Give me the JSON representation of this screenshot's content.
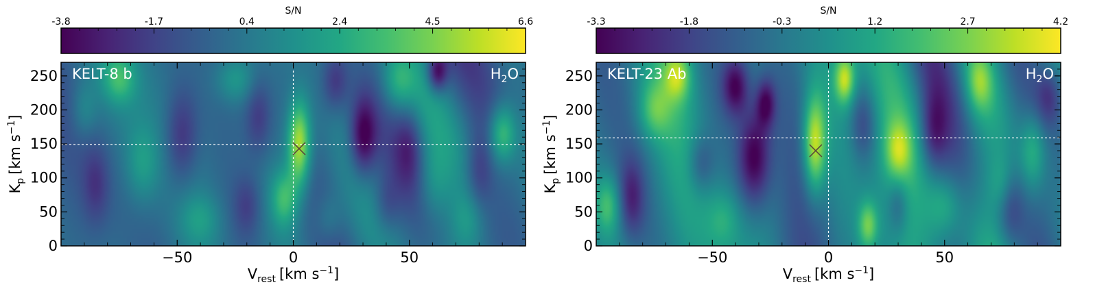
{
  "chart_data": [
    {
      "type": "heatmap",
      "planet_label": "KELT-8 b",
      "species": {
        "base": "H",
        "sub": "2",
        "tail": "O"
      },
      "colorbar": {
        "title": "S/N",
        "vmin": -3.8,
        "vmax": 6.6,
        "ticks": [
          "-3.8",
          "-1.7",
          "0.4",
          "2.4",
          "4.5",
          "6.6"
        ]
      },
      "x": {
        "label_main": "V",
        "label_sub": "rest",
        "label_units": "[km s",
        "label_sup": "−1",
        "label_close": "]",
        "range": [
          -100,
          100
        ],
        "ticks": [
          -50,
          0,
          50
        ],
        "tick_labels": [
          "−50",
          "0",
          "50"
        ]
      },
      "y": {
        "label_main": "K",
        "label_sub": "p",
        "label_units": "[km s",
        "label_sup": "−1",
        "label_close": "]",
        "range": [
          0,
          270
        ],
        "ticks": [
          0,
          50,
          100,
          150,
          200,
          250
        ],
        "tick_labels": [
          "0",
          "50",
          "100",
          "150",
          "200",
          "250"
        ]
      },
      "guides": {
        "vline_x": 0,
        "hline_y": 149
      },
      "peak_marker": {
        "x": 2.5,
        "y": 143
      },
      "blobs": [
        {
          "x": 2.5,
          "y": 150,
          "sx": 3.5,
          "sy": 45,
          "a": 5.8
        },
        {
          "x": -4,
          "y": 70,
          "sx": 4,
          "sy": 30,
          "a": 3.0
        },
        {
          "x": 90,
          "y": 165,
          "sx": 4,
          "sy": 30,
          "a": 3.5
        },
        {
          "x": -75,
          "y": 245,
          "sx": 5,
          "sy": 25,
          "a": 2.5
        },
        {
          "x": -25,
          "y": 245,
          "sx": 6,
          "sy": 25,
          "a": 2.0
        },
        {
          "x": 45,
          "y": 240,
          "sx": 5,
          "sy": 30,
          "a": 2.2
        },
        {
          "x": -65,
          "y": 120,
          "sx": 5,
          "sy": 40,
          "a": 1.8
        },
        {
          "x": 60,
          "y": 90,
          "sx": 5,
          "sy": 40,
          "a": 1.6
        },
        {
          "x": -40,
          "y": 40,
          "sx": 6,
          "sy": 25,
          "a": 1.4
        },
        {
          "x": 75,
          "y": 40,
          "sx": 5,
          "sy": 30,
          "a": 1.5
        },
        {
          "x": 15,
          "y": 40,
          "sx": 4,
          "sy": 25,
          "a": 1.2
        },
        {
          "x": -90,
          "y": 200,
          "sx": 4,
          "sy": 30,
          "a": 1.5
        },
        {
          "x": 30,
          "y": 160,
          "sx": 4,
          "sy": 40,
          "a": -4.0
        },
        {
          "x": 62,
          "y": 255,
          "sx": 3,
          "sy": 20,
          "a": -4.0
        },
        {
          "x": -48,
          "y": 160,
          "sx": 5,
          "sy": 50,
          "a": -2.5
        },
        {
          "x": -15,
          "y": 190,
          "sx": 4,
          "sy": 40,
          "a": -2.0
        },
        {
          "x": 18,
          "y": 240,
          "sx": 4,
          "sy": 30,
          "a": -2.2
        },
        {
          "x": 50,
          "y": 150,
          "sx": 4,
          "sy": 40,
          "a": -1.8
        },
        {
          "x": -85,
          "y": 90,
          "sx": 4,
          "sy": 40,
          "a": -1.6
        },
        {
          "x": 80,
          "y": 110,
          "sx": 4,
          "sy": 40,
          "a": -1.8
        },
        {
          "x": -20,
          "y": 60,
          "sx": 4,
          "sy": 30,
          "a": -1.5
        },
        {
          "x": 40,
          "y": 60,
          "sx": 4,
          "sy": 30,
          "a": -1.5
        }
      ],
      "noise_seed": 7
    },
    {
      "type": "heatmap",
      "planet_label": "KELT-23 Ab",
      "species": {
        "base": "H",
        "sub": "2",
        "tail": "O"
      },
      "colorbar": {
        "title": "S/N",
        "vmin": -3.3,
        "vmax": 4.2,
        "ticks": [
          "-3.3",
          "-1.8",
          "-0.3",
          "1.2",
          "2.7",
          "4.2"
        ]
      },
      "x": {
        "label_main": "V",
        "label_sub": "rest",
        "label_units": "[km s",
        "label_sup": "−1",
        "label_close": "]",
        "range": [
          -100,
          100
        ],
        "ticks": [
          -50,
          0,
          50
        ],
        "tick_labels": [
          "−50",
          "0",
          "50"
        ]
      },
      "y": {
        "label_main": "K",
        "label_sub": "p",
        "label_units": "[km s",
        "label_sup": "−1",
        "label_close": "]",
        "range": [
          0,
          270
        ],
        "ticks": [
          0,
          50,
          100,
          150,
          200,
          250
        ],
        "tick_labels": [
          "0",
          "50",
          "100",
          "150",
          "200",
          "250"
        ]
      },
      "guides": {
        "vline_x": 0,
        "hline_y": 159
      },
      "peak_marker": {
        "x": -5.5,
        "y": 140
      },
      "blobs": [
        {
          "x": -6,
          "y": 150,
          "sx": 3.5,
          "sy": 50,
          "a": 4.0
        },
        {
          "x": 7,
          "y": 245,
          "sx": 3,
          "sy": 25,
          "a": 3.2
        },
        {
          "x": -65,
          "y": 250,
          "sx": 4,
          "sy": 25,
          "a": 2.5
        },
        {
          "x": 30,
          "y": 140,
          "sx": 4,
          "sy": 30,
          "a": 2.3
        },
        {
          "x": 17,
          "y": 30,
          "sx": 3,
          "sy": 25,
          "a": 2.5
        },
        {
          "x": -75,
          "y": 200,
          "sx": 5,
          "sy": 30,
          "a": 1.8
        },
        {
          "x": 65,
          "y": 240,
          "sx": 4,
          "sy": 30,
          "a": 2.0
        },
        {
          "x": 88,
          "y": 140,
          "sx": 4,
          "sy": 40,
          "a": 2.0
        },
        {
          "x": -95,
          "y": 60,
          "sx": 4,
          "sy": 30,
          "a": 2.0
        },
        {
          "x": 50,
          "y": 60,
          "sx": 5,
          "sy": 30,
          "a": 1.3
        },
        {
          "x": -45,
          "y": 40,
          "sx": 5,
          "sy": 30,
          "a": 1.2
        },
        {
          "x": 75,
          "y": 90,
          "sx": 4,
          "sy": 30,
          "a": 1.2
        },
        {
          "x": -32,
          "y": 130,
          "sx": 5,
          "sy": 50,
          "a": -3.3
        },
        {
          "x": -40,
          "y": 235,
          "sx": 4,
          "sy": 30,
          "a": -2.8
        },
        {
          "x": -27,
          "y": 210,
          "sx": 3,
          "sy": 25,
          "a": -2.6
        },
        {
          "x": 45,
          "y": 165,
          "sx": 4,
          "sy": 40,
          "a": -1.8
        },
        {
          "x": 15,
          "y": 180,
          "sx": 4,
          "sy": 40,
          "a": -1.8
        },
        {
          "x": -85,
          "y": 70,
          "sx": 4,
          "sy": 40,
          "a": -2.0
        },
        {
          "x": 78,
          "y": 60,
          "sx": 4,
          "sy": 40,
          "a": -1.6
        },
        {
          "x": 95,
          "y": 220,
          "sx": 4,
          "sy": 30,
          "a": -1.5
        },
        {
          "x": -55,
          "y": 120,
          "sx": 4,
          "sy": 30,
          "a": -1.5
        },
        {
          "x": 30,
          "y": 60,
          "sx": 3,
          "sy": 30,
          "a": -1.4
        }
      ],
      "noise_seed": 13
    }
  ]
}
